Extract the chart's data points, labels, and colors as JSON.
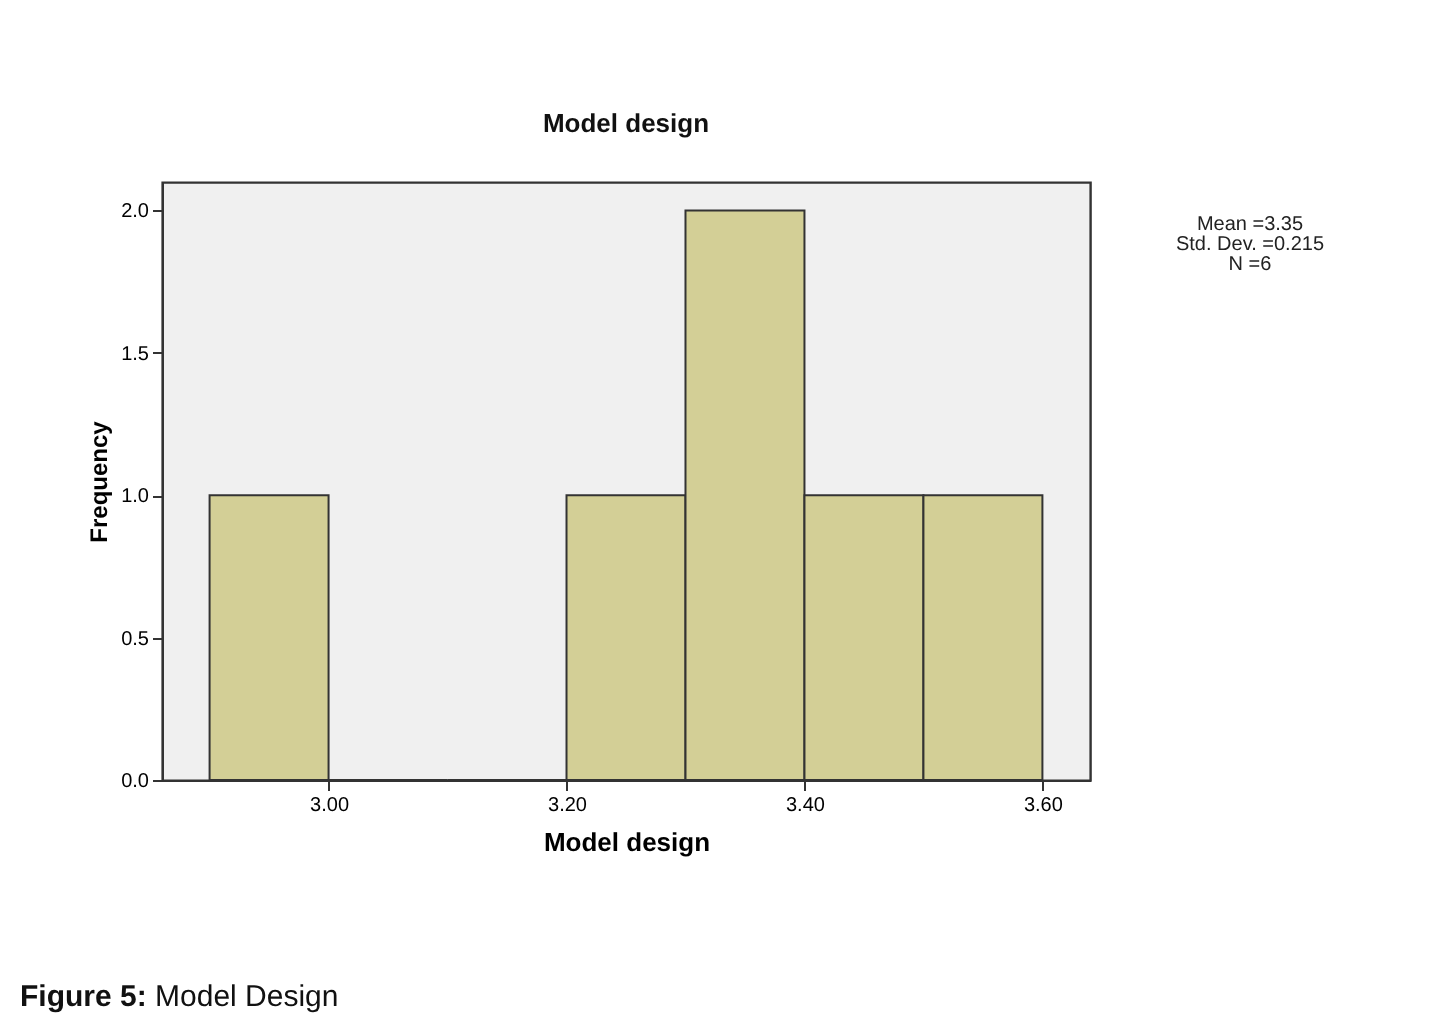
{
  "chart_data": {
    "type": "histogram",
    "title": "Model design",
    "xlabel": "Model design",
    "ylabel": "Frequency",
    "bins": [
      2.9,
      3.0,
      3.1,
      3.2,
      3.3,
      3.4,
      3.5,
      3.6
    ],
    "values": [
      1,
      0,
      0,
      1,
      2,
      1,
      1
    ],
    "color": "#d3cf96",
    "xlim": [
      2.86,
      3.64
    ],
    "ylim": [
      0,
      2.1
    ],
    "xticks": [
      {
        "value": 3.0,
        "label": "3.00"
      },
      {
        "value": 3.2,
        "label": "3.20"
      },
      {
        "value": 3.4,
        "label": "3.40"
      },
      {
        "value": 3.6,
        "label": "3.60"
      }
    ],
    "yticks": [
      {
        "value": 0,
        "label": "0.0"
      },
      {
        "value": 0.5,
        "label": "0.5"
      },
      {
        "value": 1,
        "label": "1.0"
      },
      {
        "value": 1.5,
        "label": "1.5"
      },
      {
        "value": 2,
        "label": "2.0"
      }
    ],
    "annotations": [
      "Mean =3.35",
      "Std. Dev. =0.215",
      "N =6",
      "Figure 5: Model Design"
    ]
  }
}
